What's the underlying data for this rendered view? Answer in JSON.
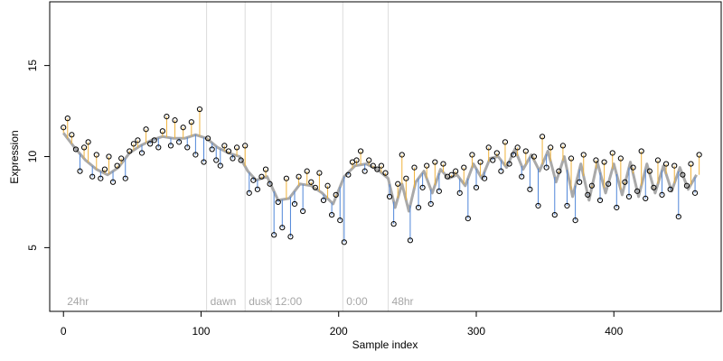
{
  "chart_data": {
    "type": "scatter",
    "title": "",
    "xlabel": "Sample index",
    "ylabel": "Expression",
    "xlim": [
      -10,
      478
    ],
    "ylim": [
      1.5,
      18.5
    ],
    "xticks": [
      0,
      100,
      200,
      300,
      400
    ],
    "yticks": [
      5,
      10,
      15
    ],
    "grid": false,
    "colors": {
      "above_trend": "#f0b23a",
      "below_trend": "#4f86d9",
      "trend": "#a9a9a9",
      "markers": "#dcdcdc",
      "marker_text": "#a6a6a6"
    },
    "markers": [
      {
        "x": 0,
        "label": "24hr"
      },
      {
        "x": 104,
        "label": "dawn"
      },
      {
        "x": 132,
        "label": "dusk"
      },
      {
        "x": 151,
        "label": "12:00"
      },
      {
        "x": 203,
        "label": "0:00"
      },
      {
        "x": 236,
        "label": "48hr"
      }
    ],
    "series": [
      {
        "role": "trend",
        "x": [
          0,
          8,
          16,
          24,
          32,
          40,
          48,
          56,
          64,
          72,
          80,
          88,
          96,
          104,
          112,
          120,
          128,
          134,
          140,
          148,
          156,
          164,
          172,
          180,
          188,
          196,
          204,
          212,
          220,
          228,
          236,
          241,
          246,
          251,
          256,
          262,
          268,
          274,
          280,
          286,
          292,
          298,
          304,
          310,
          316,
          322,
          328,
          334,
          340,
          346,
          352,
          358,
          364,
          370,
          376,
          382,
          388,
          394,
          400,
          406,
          412,
          418,
          424,
          430,
          436,
          442,
          448,
          454,
          460
        ],
        "values": [
          11.3,
          10.5,
          9.8,
          9.3,
          9.0,
          9.4,
          10.2,
          10.6,
          10.9,
          11.1,
          11.0,
          11.0,
          11.2,
          11.0,
          10.5,
          10.2,
          10.0,
          9.2,
          8.7,
          8.9,
          7.6,
          7.7,
          8.5,
          8.4,
          8.0,
          7.4,
          8.9,
          9.5,
          9.6,
          9.3,
          8.8,
          7.2,
          8.5,
          7.0,
          8.6,
          9.2,
          8.0,
          9.3,
          8.8,
          9.0,
          8.4,
          9.6,
          8.8,
          9.9,
          10.0,
          9.4,
          10.4,
          9.3,
          10.1,
          9.2,
          10.3,
          8.6,
          10.0,
          7.8,
          9.6,
          7.6,
          9.7,
          8.0,
          9.6,
          7.9,
          9.7,
          7.8,
          9.6,
          8.0,
          9.5,
          8.1,
          9.4,
          8.2,
          9.0
        ]
      },
      {
        "role": "observed",
        "x": [
          0,
          3,
          6,
          9,
          12,
          15,
          18,
          21,
          24,
          27,
          30,
          33,
          36,
          39,
          42,
          45,
          48,
          51,
          54,
          57,
          60,
          63,
          66,
          69,
          72,
          75,
          78,
          81,
          84,
          87,
          90,
          93,
          96,
          99,
          102,
          105,
          108,
          111,
          114,
          117,
          120,
          123,
          126,
          129,
          132,
          135,
          138,
          141,
          144,
          147,
          150,
          153,
          156,
          159,
          162,
          165,
          168,
          171,
          174,
          177,
          180,
          183,
          186,
          189,
          192,
          195,
          198,
          201,
          204,
          207,
          210,
          213,
          216,
          219,
          222,
          225,
          228,
          231,
          234,
          237,
          240,
          243,
          246,
          249,
          252,
          255,
          258,
          261,
          264,
          267,
          270,
          273,
          276,
          279,
          282,
          285,
          288,
          291,
          294,
          297,
          300,
          303,
          306,
          309,
          312,
          315,
          318,
          321,
          324,
          327,
          330,
          333,
          336,
          339,
          342,
          345,
          348,
          351,
          354,
          357,
          360,
          363,
          366,
          369,
          372,
          375,
          378,
          381,
          384,
          387,
          390,
          393,
          396,
          399,
          402,
          405,
          408,
          411,
          414,
          417,
          420,
          423,
          426,
          429,
          432,
          435,
          438,
          441,
          444,
          447,
          450,
          453,
          456,
          459,
          462
        ],
        "values": [
          11.6,
          12.1,
          11.2,
          10.4,
          9.2,
          10.5,
          10.8,
          8.9,
          10.1,
          8.8,
          9.3,
          10.0,
          8.6,
          9.5,
          9.9,
          8.8,
          10.3,
          10.7,
          10.9,
          10.2,
          11.5,
          10.7,
          10.9,
          10.5,
          11.4,
          12.2,
          10.6,
          12.0,
          10.8,
          11.6,
          10.5,
          11.9,
          10.1,
          12.6,
          9.7,
          11.0,
          10.4,
          9.8,
          9.5,
          10.6,
          10.3,
          9.9,
          10.5,
          9.8,
          10.6,
          8.0,
          8.7,
          8.2,
          8.9,
          9.3,
          8.5,
          5.7,
          7.5,
          6.1,
          8.8,
          5.6,
          7.4,
          8.9,
          7.0,
          9.2,
          8.6,
          8.3,
          9.1,
          7.6,
          8.4,
          6.8,
          7.9,
          6.5,
          5.3,
          9.0,
          9.7,
          9.8,
          10.3,
          9.2,
          9.8,
          9.5,
          9.3,
          9.5,
          9.1,
          7.8,
          6.3,
          8.5,
          10.1,
          8.8,
          5.4,
          9.4,
          7.2,
          8.3,
          9.5,
          7.4,
          9.7,
          8.1,
          9.6,
          8.9,
          9.0,
          9.2,
          8.0,
          9.4,
          6.6,
          10.1,
          8.3,
          9.7,
          8.8,
          10.5,
          9.8,
          10.2,
          9.2,
          10.8,
          9.6,
          10.1,
          10.5,
          8.9,
          10.3,
          8.2,
          10.0,
          7.3,
          11.1,
          9.4,
          10.5,
          6.8,
          9.2,
          10.6,
          7.3,
          9.9,
          6.5,
          8.6,
          10.1,
          7.9,
          8.4,
          9.8,
          7.6,
          9.7,
          8.5,
          10.2,
          7.2,
          9.9,
          8.6,
          7.8,
          9.4,
          8.1,
          10.3,
          7.7,
          9.2,
          8.3,
          9.8,
          7.9,
          9.6,
          8.2,
          9.5,
          6.7,
          9.0,
          8.4,
          9.6,
          8.0,
          10.1
        ]
      }
    ]
  }
}
